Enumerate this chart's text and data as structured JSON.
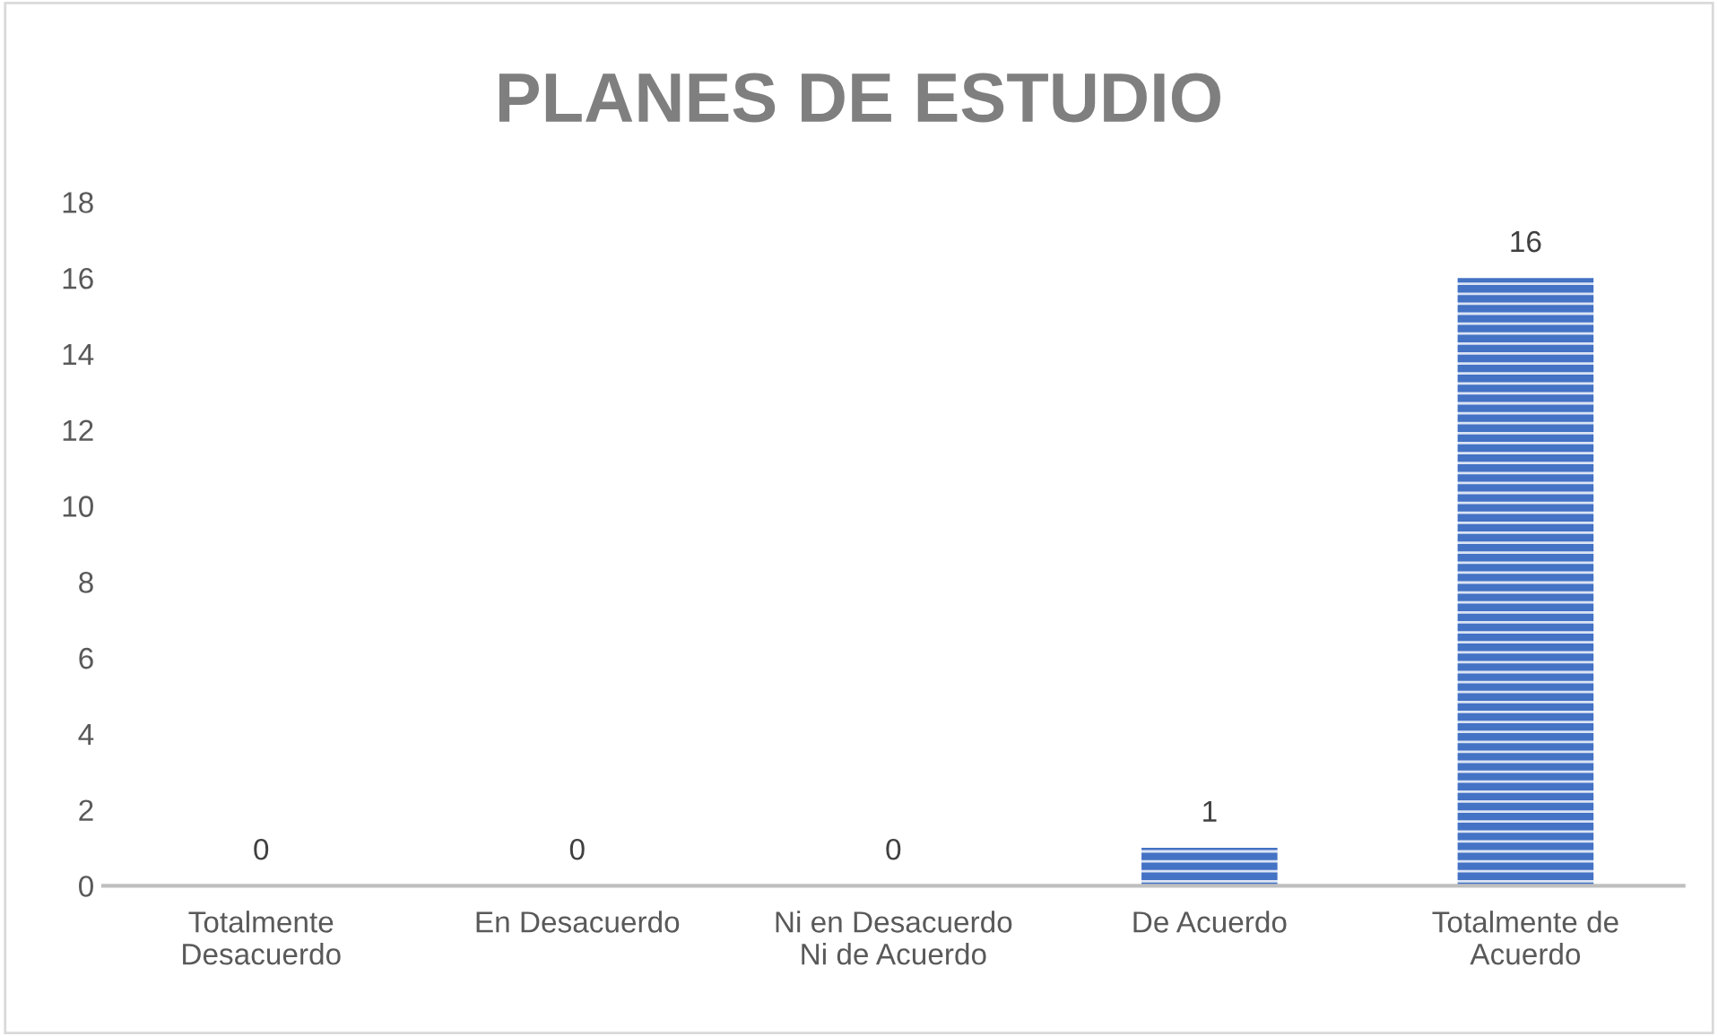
{
  "chart_data": {
    "type": "bar",
    "title": "PLANES DE ESTUDIO",
    "categories": [
      "Totalmente\nDesacuerdo",
      "En Desacuerdo",
      "Ni en Desacuerdo\nNi de Acuerdo",
      "De Acuerdo",
      "Totalmente de\nAcuerdo"
    ],
    "values": [
      0,
      0,
      0,
      1,
      16
    ],
    "color": "#4472c4",
    "ylim": [
      0,
      18
    ],
    "yticks": [
      0,
      2,
      4,
      6,
      8,
      10,
      12,
      14,
      16,
      18
    ],
    "grid": false,
    "data_labels": true
  }
}
